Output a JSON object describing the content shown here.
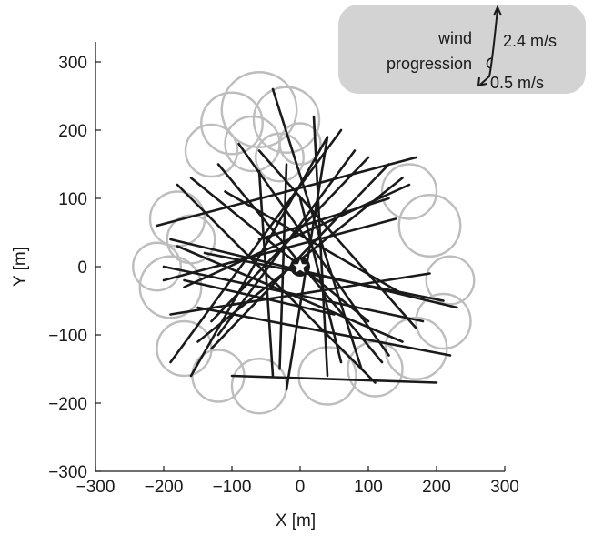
{
  "chart_data": {
    "type": "line",
    "xlabel": "X [m]",
    "ylabel": "Y [m]",
    "xlim": [
      -300,
      300
    ],
    "ylim": [
      -300,
      300
    ],
    "xticks": [
      "−300",
      "−200",
      "−100",
      "0",
      "100",
      "200",
      "300"
    ],
    "yticks": [
      "−300",
      "−200",
      "−100",
      "0",
      "100",
      "200",
      "300"
    ],
    "xtick_values": [
      -300,
      -200,
      -100,
      0,
      100,
      200,
      300
    ],
    "ytick_values": [
      -300,
      -200,
      -100,
      0,
      100,
      200,
      300
    ],
    "grid": false,
    "center_marker": {
      "shape": "star",
      "x": 0,
      "y": 0
    },
    "legend": {
      "placement": "top-right",
      "label_line1": "wind",
      "label_line2": "progression",
      "high": "2.4 m/s",
      "low": "0.5 m/s"
    },
    "colors": {
      "straight": "#1a1a1a",
      "turn": "#bdbdbd",
      "legend_bg": "#d3d3d3"
    },
    "series": [
      {
        "style": "straight",
        "segments": [
          [
            [
              -180,
              30
            ],
            [
              150,
              -110
            ]
          ],
          [
            [
              -200,
              -20
            ],
            [
              140,
              70
            ]
          ],
          [
            [
              -190,
              40
            ],
            [
              230,
              -60
            ]
          ],
          [
            [
              -150,
              -110
            ],
            [
              150,
              130
            ]
          ],
          [
            [
              -130,
              -80
            ],
            [
              100,
              160
            ]
          ],
          [
            [
              -170,
              -20
            ],
            [
              50,
              -70
            ]
          ],
          [
            [
              -120,
              150
            ],
            [
              120,
              -140
            ]
          ],
          [
            [
              -90,
              180
            ],
            [
              130,
              -130
            ]
          ],
          [
            [
              -60,
              170
            ],
            [
              170,
              -90
            ]
          ],
          [
            [
              -190,
              -140
            ],
            [
              60,
              200
            ]
          ],
          [
            [
              -160,
              -160
            ],
            [
              40,
              190
            ]
          ],
          [
            [
              -40,
              260
            ],
            [
              90,
              -150
            ]
          ],
          [
            [
              20,
              220
            ],
            [
              40,
              -160
            ]
          ],
          [
            [
              -20,
              150
            ],
            [
              -30,
              -150
            ]
          ],
          [
            [
              -180,
              120
            ],
            [
              110,
              -170
            ]
          ],
          [
            [
              -200,
              0
            ],
            [
              180,
              -80
            ]
          ],
          [
            [
              -60,
              140
            ],
            [
              -40,
              -160
            ]
          ],
          [
            [
              -140,
              20
            ],
            [
              210,
              -50
            ]
          ],
          [
            [
              -100,
              -160
            ],
            [
              200,
              -170
            ]
          ],
          [
            [
              -130,
              -120
            ],
            [
              130,
              150
            ]
          ],
          [
            [
              80,
              170
            ],
            [
              -120,
              -100
            ]
          ],
          [
            [
              160,
              120
            ],
            [
              -170,
              -30
            ]
          ],
          [
            [
              -210,
              60
            ],
            [
              170,
              160
            ]
          ],
          [
            [
              -160,
              130
            ],
            [
              100,
              -80
            ]
          ],
          [
            [
              0,
              100
            ],
            [
              60,
              -140
            ]
          ],
          [
            [
              -190,
              -70
            ],
            [
              190,
              -10
            ]
          ],
          [
            [
              40,
              190
            ],
            [
              -20,
              -180
            ]
          ],
          [
            [
              -110,
              110
            ],
            [
              150,
              -40
            ]
          ],
          [
            [
              -60,
              40
            ],
            [
              130,
              100
            ]
          ],
          [
            [
              -150,
              -60
            ],
            [
              220,
              -130
            ]
          ]
        ]
      },
      {
        "style": "turn",
        "loops": [
          [
            -60,
            230,
            55
          ],
          [
            -20,
            215,
            48
          ],
          [
            -100,
            210,
            45
          ],
          [
            -70,
            180,
            40
          ],
          [
            -30,
            160,
            35
          ],
          [
            -130,
            170,
            38
          ],
          [
            0,
            180,
            30
          ],
          [
            -190,
            -30,
            45
          ],
          [
            -210,
            0,
            35
          ],
          [
            -180,
            70,
            40
          ],
          [
            -170,
            -120,
            40
          ],
          [
            -120,
            -160,
            38
          ],
          [
            -60,
            -175,
            40
          ],
          [
            40,
            -160,
            42
          ],
          [
            110,
            -150,
            40
          ],
          [
            170,
            -120,
            45
          ],
          [
            210,
            -80,
            40
          ],
          [
            220,
            -20,
            35
          ],
          [
            190,
            60,
            45
          ],
          [
            160,
            110,
            40
          ],
          [
            -160,
            40,
            35
          ]
        ]
      }
    ]
  }
}
